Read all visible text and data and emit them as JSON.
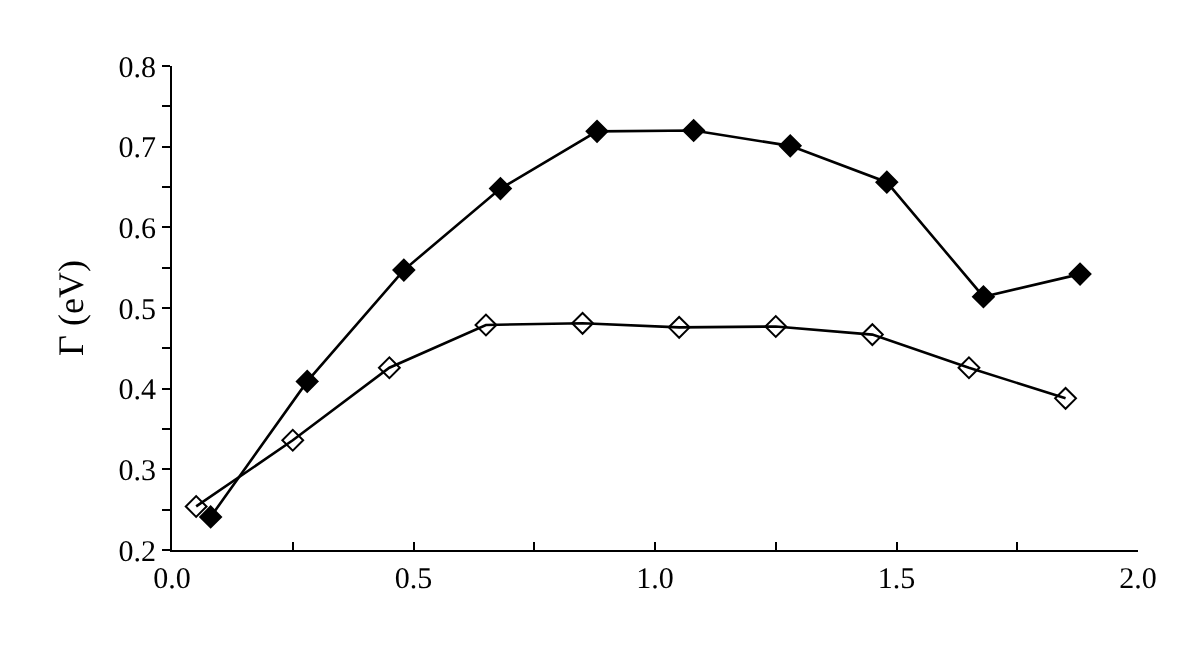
{
  "chart_data": {
    "type": "line",
    "ylabel": "Γ (eV)",
    "xlim": [
      0,
      2
    ],
    "ylim": [
      0.2,
      0.8
    ],
    "xticks": [
      {
        "value": 0,
        "label": "0.0"
      },
      {
        "value": 0.25,
        "label": null
      },
      {
        "value": 0.5,
        "label": "0.5"
      },
      {
        "value": 0.75,
        "label": null
      },
      {
        "value": 1,
        "label": "1.0"
      },
      {
        "value": 1.25,
        "label": null
      },
      {
        "value": 1.5,
        "label": "1.5"
      },
      {
        "value": 1.75,
        "label": null
      },
      {
        "value": 2,
        "label": "2.0"
      }
    ],
    "yticks": [
      {
        "value": 0.2,
        "label": "0.2"
      },
      {
        "value": 0.25,
        "label": null
      },
      {
        "value": 0.3,
        "label": "0.3"
      },
      {
        "value": 0.35,
        "label": null
      },
      {
        "value": 0.4,
        "label": "0.4"
      },
      {
        "value": 0.45,
        "label": null
      },
      {
        "value": 0.5,
        "label": "0.5"
      },
      {
        "value": 0.55,
        "label": null
      },
      {
        "value": 0.6,
        "label": "0.6"
      },
      {
        "value": 0.65,
        "label": null
      },
      {
        "value": 0.7,
        "label": "0.7"
      },
      {
        "value": 0.75,
        "label": null
      },
      {
        "value": 0.8,
        "label": "0.8"
      }
    ],
    "grid": false,
    "line_style": "solid",
    "marker": "diamond",
    "series": [
      {
        "color": "#000000",
        "x": [
          0.08,
          0.28,
          0.48,
          0.68,
          0.88,
          1.08,
          1.28,
          1.48,
          1.68,
          1.88
        ],
        "values": [
          0.241,
          0.409,
          0.547,
          0.648,
          0.719,
          0.72,
          0.701,
          0.656,
          0.514,
          0.542
        ]
      },
      {
        "color": "#000000",
        "marker": "diamond-open",
        "x": [
          0.05,
          0.25,
          0.45,
          0.65,
          0.85,
          1.05,
          1.25,
          1.45,
          1.65,
          1.85
        ],
        "values": [
          0.254,
          0.336,
          0.426,
          0.479,
          0.481,
          0.476,
          0.477,
          0.467,
          0.426,
          0.388
        ]
      }
    ]
  }
}
